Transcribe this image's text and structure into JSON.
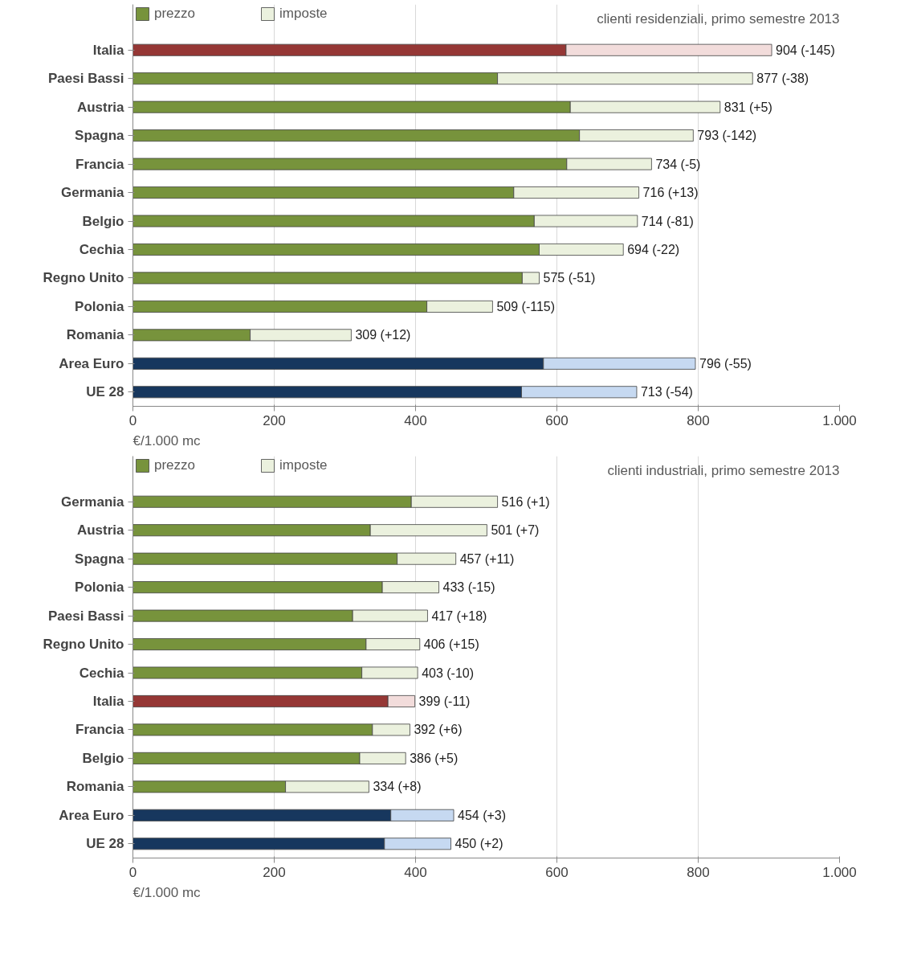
{
  "chart_data": [
    {
      "type": "bar",
      "orientation": "horizontal",
      "stacked": true,
      "subtitle": "clienti residenziali, primo semestre 2013",
      "xlabel": "€/1.000 mc",
      "categories": [
        "Italia",
        "Paesi Bassi",
        "Austria",
        "Spagna",
        "Francia",
        "Germania",
        "Belgio",
        "Cechia",
        "Regno Unito",
        "Polonia",
        "Romania",
        "Area Euro",
        "UE 28"
      ],
      "series": [
        {
          "name": "prezzo",
          "color": "#77933c",
          "colors": [
            "#953735",
            "#77933c",
            "#77933c",
            "#77933c",
            "#77933c",
            "#77933c",
            "#77933c",
            "#77933c",
            "#77933c",
            "#77933c",
            "#77933c",
            "#17375e",
            "#17375e"
          ],
          "values": [
            613,
            516,
            619,
            632,
            614,
            539,
            568,
            575,
            551,
            416,
            166,
            581,
            550
          ]
        },
        {
          "name": "imposte",
          "color": "#ebf1de",
          "colors": [
            "#f2dcdb",
            "#ebf1de",
            "#ebf1de",
            "#ebf1de",
            "#ebf1de",
            "#ebf1de",
            "#ebf1de",
            "#ebf1de",
            "#ebf1de",
            "#ebf1de",
            "#ebf1de",
            "#c6d9f1",
            "#c6d9f1"
          ],
          "values": [
            291,
            361,
            212,
            161,
            120,
            177,
            146,
            119,
            24,
            93,
            143,
            215,
            163
          ]
        }
      ],
      "totals": [
        "904 (-145)",
        "877 (-38)",
        "831 (+5)",
        "793 (-142)",
        "734 (-5)",
        "716 (+13)",
        "714 (-81)",
        "694 (-22)",
        "575 (-51)",
        "509 (-115)",
        "309 (+12)",
        "796 (-55)",
        "713 (-54)"
      ],
      "xlim": [
        0,
        1000
      ],
      "xticks": [
        0,
        200,
        400,
        600,
        800,
        {
          "value": 1000,
          "label": "1.000"
        }
      ],
      "grid": "x",
      "legend": "top"
    },
    {
      "type": "bar",
      "orientation": "horizontal",
      "stacked": true,
      "subtitle": "clienti industriali, primo semestre 2013",
      "xlabel": "€/1.000 mc",
      "categories": [
        "Germania",
        "Austria",
        "Spagna",
        "Polonia",
        "Paesi Bassi",
        "Regno Unito",
        "Cechia",
        "Italia",
        "Francia",
        "Belgio",
        "Romania",
        "Area Euro",
        "UE 28"
      ],
      "series": [
        {
          "name": "prezzo",
          "color": "#77933c",
          "colors": [
            "#77933c",
            "#77933c",
            "#77933c",
            "#77933c",
            "#77933c",
            "#77933c",
            "#77933c",
            "#953735",
            "#77933c",
            "#77933c",
            "#77933c",
            "#17375e",
            "#17375e"
          ],
          "values": [
            394,
            336,
            374,
            353,
            311,
            330,
            324,
            361,
            339,
            321,
            216,
            365,
            356
          ]
        },
        {
          "name": "imposte",
          "color": "#ebf1de",
          "colors": [
            "#ebf1de",
            "#ebf1de",
            "#ebf1de",
            "#ebf1de",
            "#ebf1de",
            "#ebf1de",
            "#ebf1de",
            "#f2dcdb",
            "#ebf1de",
            "#ebf1de",
            "#ebf1de",
            "#c6d9f1",
            "#c6d9f1"
          ],
          "values": [
            122,
            165,
            83,
            80,
            106,
            76,
            79,
            38,
            53,
            65,
            118,
            89,
            94
          ]
        }
      ],
      "totals": [
        "516 (+1)",
        "501 (+7)",
        "457 (+11)",
        "433 (-15)",
        "417 (+18)",
        "406 (+15)",
        "403 (-10)",
        "399 (-11)",
        "392 (+6)",
        "386 (+5)",
        "334 (+8)",
        "454 (+3)",
        "450 (+2)"
      ],
      "xlim": [
        0,
        1000
      ],
      "xticks": [
        0,
        200,
        400,
        600,
        800,
        {
          "value": 1000,
          "label": "1.000"
        }
      ],
      "grid": "x",
      "legend": "top"
    }
  ]
}
